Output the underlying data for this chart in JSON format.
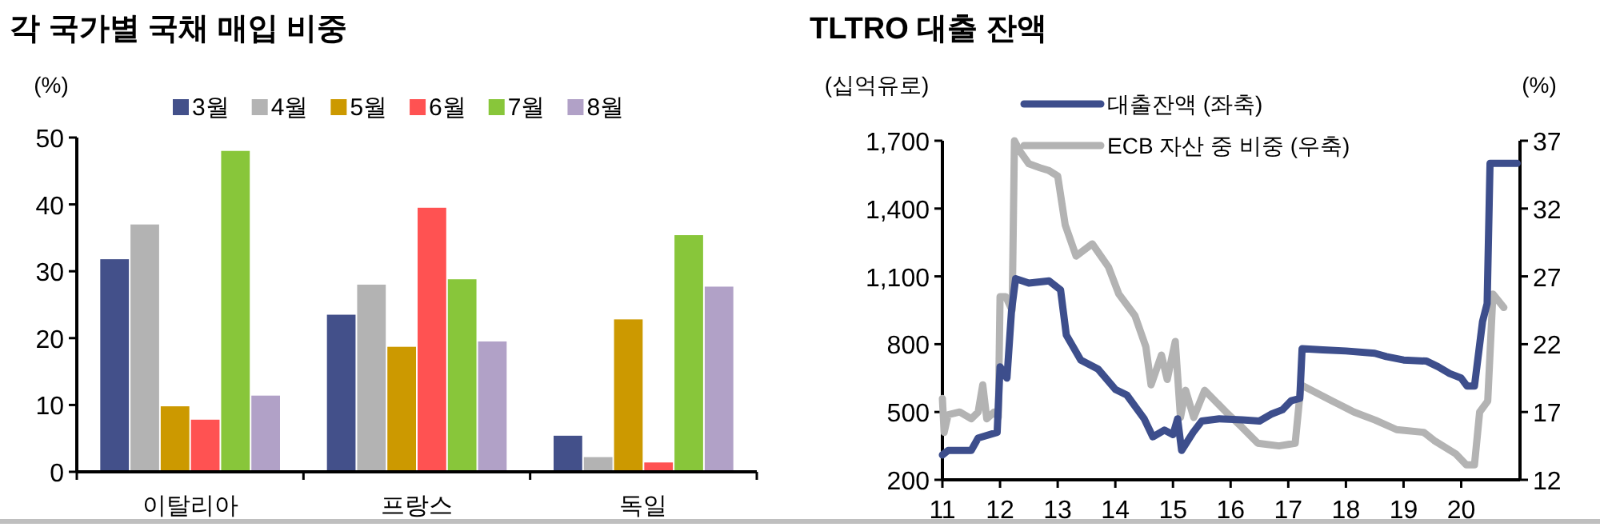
{
  "chart_data": [
    {
      "type": "bar",
      "title": "각 국가별 국채 매입 비중",
      "ylabel": "(%)",
      "categories": [
        "이탈리아",
        "프랑스",
        "독일"
      ],
      "ylim": [
        0,
        50
      ],
      "yticks": [
        0,
        10,
        20,
        30,
        40,
        50
      ],
      "legend": "top",
      "series": [
        {
          "name": "3월",
          "color": "#43508a",
          "values": [
            31.8,
            23.5,
            5.4
          ]
        },
        {
          "name": "4월",
          "color": "#b3b3b3",
          "values": [
            37,
            28,
            2.2
          ]
        },
        {
          "name": "5월",
          "color": "#cc9900",
          "values": [
            9.8,
            18.7,
            22.8
          ]
        },
        {
          "name": "6월",
          "color": "#ff5252",
          "values": [
            7.8,
            39.5,
            1.4
          ]
        },
        {
          "name": "7월",
          "color": "#88c63a",
          "values": [
            48,
            28.8,
            35.4
          ]
        },
        {
          "name": "8월",
          "color": "#b1a1c7",
          "values": [
            11.4,
            19.5,
            27.7
          ]
        }
      ]
    },
    {
      "type": "line",
      "title": "TLTRO 대출 잔액",
      "ylabel": "(십억유로)",
      "y2label": "(%)",
      "xlim": [
        11,
        21.02
      ],
      "xticks": [
        11,
        12,
        13,
        14,
        15,
        16,
        17,
        18,
        19,
        20
      ],
      "ylim": [
        200,
        1700
      ],
      "yticks": [
        200,
        500,
        800,
        {
          "value": 1100,
          "label": "1,100"
        },
        {
          "value": 1400,
          "label": "1,400"
        },
        {
          "value": 1700,
          "label": "1,700"
        }
      ],
      "y2lim": [
        12,
        37
      ],
      "y2ticks": [
        12,
        17,
        22,
        27,
        32,
        37
      ],
      "legend": "top",
      "line_style": "solid",
      "series": [
        {
          "name": "ECB 자산 중 비중 (우축)",
          "color": "#b3b3b3",
          "axis": "y2",
          "x": [
            11.0,
            11.03,
            11.1,
            11.3,
            11.5,
            11.62,
            11.7,
            11.77,
            11.9,
            11.97,
            12.0,
            12.1,
            12.21,
            12.25,
            12.35,
            12.5,
            12.7,
            12.85,
            13.0,
            13.13,
            13.32,
            13.6,
            13.88,
            14.06,
            14.34,
            14.53,
            14.62,
            14.8,
            14.9,
            15.04,
            15.13,
            15.22,
            15.36,
            15.55,
            15.92,
            16.19,
            16.47,
            16.84,
            17.12,
            17.22,
            17.77,
            18.14,
            18.51,
            18.88,
            19.35,
            19.53,
            19.91,
            20.09,
            20.23,
            20.32,
            20.46,
            20.55,
            20.74
          ],
          "values": [
            18.0,
            15.5,
            16.8,
            17.0,
            16.5,
            17.0,
            19.0,
            16.5,
            17.0,
            16.6,
            25.5,
            25.5,
            24.5,
            37,
            36.2,
            35.3,
            35.0,
            34.8,
            34.4,
            30.8,
            28.5,
            29.4,
            27.7,
            25.7,
            24.1,
            21.8,
            19.0,
            21.2,
            19.4,
            22.2,
            16.6,
            18.6,
            16.6,
            18.6,
            17.0,
            15.9,
            14.7,
            14.5,
            14.7,
            19.0,
            17.8,
            17.0,
            16.4,
            15.7,
            15.5,
            14.9,
            13.9,
            13.1,
            13.1,
            17.0,
            17.8,
            25.7,
            24.7
          ]
        },
        {
          "name": "대출잔액 (좌축)",
          "color": "#3d4e8c",
          "axis": "y",
          "x": [
            11.0,
            11.1,
            11.5,
            11.62,
            11.95,
            12.0,
            12.12,
            12.2,
            12.27,
            12.5,
            12.85,
            13.05,
            13.15,
            13.4,
            13.7,
            14.0,
            14.2,
            14.5,
            14.65,
            14.85,
            15.0,
            15.08,
            15.15,
            15.35,
            15.5,
            15.8,
            16.2,
            16.5,
            16.7,
            16.9,
            17.05,
            17.2,
            17.24,
            17.6,
            18.0,
            18.5,
            18.7,
            19.0,
            19.4,
            19.6,
            19.8,
            20.0,
            20.1,
            20.23,
            20.37,
            20.45,
            20.5,
            20.97
          ],
          "values": [
            310,
            330,
            330,
            385,
            410,
            700,
            650,
            950,
            1090,
            1070,
            1080,
            1040,
            840,
            730,
            690,
            600,
            575,
            470,
            390,
            420,
            400,
            470,
            330,
            410,
            460,
            470,
            465,
            460,
            490,
            510,
            550,
            560,
            780,
            775,
            770,
            760,
            745,
            730,
            725,
            700,
            670,
            650,
            615,
            615,
            900,
            980,
            1600,
            1600
          ]
        }
      ]
    }
  ]
}
